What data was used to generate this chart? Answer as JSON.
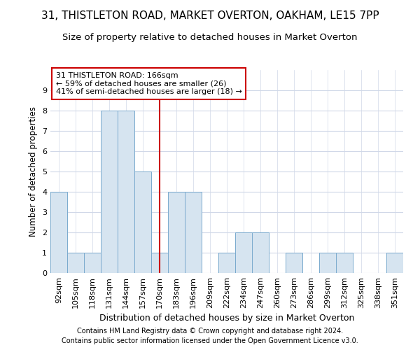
{
  "title1": "31, THISTLETON ROAD, MARKET OVERTON, OAKHAM, LE15 7PP",
  "title2": "Size of property relative to detached houses in Market Overton",
  "xlabel": "Distribution of detached houses by size in Market Overton",
  "ylabel": "Number of detached properties",
  "categories": [
    "92sqm",
    "105sqm",
    "118sqm",
    "131sqm",
    "144sqm",
    "157sqm",
    "170sqm",
    "183sqm",
    "196sqm",
    "209sqm",
    "222sqm",
    "234sqm",
    "247sqm",
    "260sqm",
    "273sqm",
    "286sqm",
    "299sqm",
    "312sqm",
    "325sqm",
    "338sqm",
    "351sqm"
  ],
  "values": [
    4,
    1,
    1,
    8,
    8,
    5,
    1,
    4,
    4,
    0,
    1,
    2,
    2,
    0,
    1,
    0,
    1,
    1,
    0,
    0,
    1
  ],
  "bar_color": "#d6e4f0",
  "bar_edge_color": "#7aaace",
  "vline_x": 6,
  "vline_color": "#cc0000",
  "annotation_text": "31 THISTLETON ROAD: 166sqm\n← 59% of detached houses are smaller (26)\n41% of semi-detached houses are larger (18) →",
  "annotation_box_color": "#cc0000",
  "ylim": [
    0,
    10
  ],
  "yticks": [
    0,
    1,
    2,
    3,
    4,
    5,
    6,
    7,
    8,
    9,
    10
  ],
  "footer1": "Contains HM Land Registry data © Crown copyright and database right 2024.",
  "footer2": "Contains public sector information licensed under the Open Government Licence v3.0.",
  "background_color": "#ffffff",
  "grid_color": "#d0d8e8",
  "title1_fontsize": 11,
  "title2_fontsize": 9.5,
  "xlabel_fontsize": 9,
  "ylabel_fontsize": 8.5,
  "tick_fontsize": 8,
  "annot_fontsize": 8,
  "footer_fontsize": 7
}
